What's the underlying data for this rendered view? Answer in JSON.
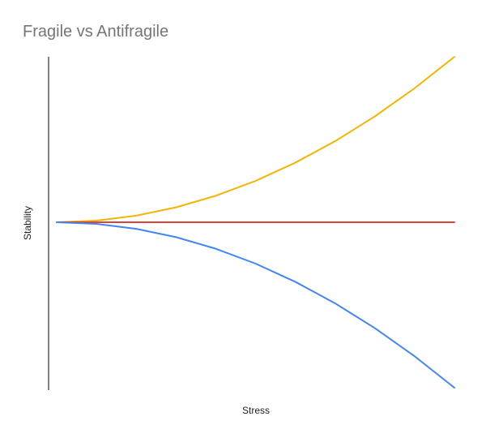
{
  "chart_data": {
    "type": "line",
    "title": "Fragile vs Antifragile",
    "xlabel": "Stress",
    "ylabel": "Stability",
    "x": [
      0,
      1,
      2,
      3,
      4,
      5,
      6,
      7,
      8,
      9,
      10
    ],
    "xlim": [
      0,
      10
    ],
    "ylim": [
      -1,
      1
    ],
    "grid": false,
    "legend": "none",
    "series": [
      {
        "color": "#f4b400",
        "values": [
          0,
          0.01,
          0.04,
          0.09,
          0.16,
          0.25,
          0.36,
          0.49,
          0.64,
          0.81,
          1.0
        ]
      },
      {
        "color": "#db4437",
        "values": [
          0,
          0,
          0,
          0,
          0,
          0,
          0,
          0,
          0,
          0,
          0
        ]
      },
      {
        "color": "#4285f4",
        "values": [
          0,
          -0.01,
          -0.04,
          -0.09,
          -0.16,
          -0.25,
          -0.36,
          -0.49,
          -0.64,
          -0.81,
          -1.0
        ]
      }
    ]
  }
}
